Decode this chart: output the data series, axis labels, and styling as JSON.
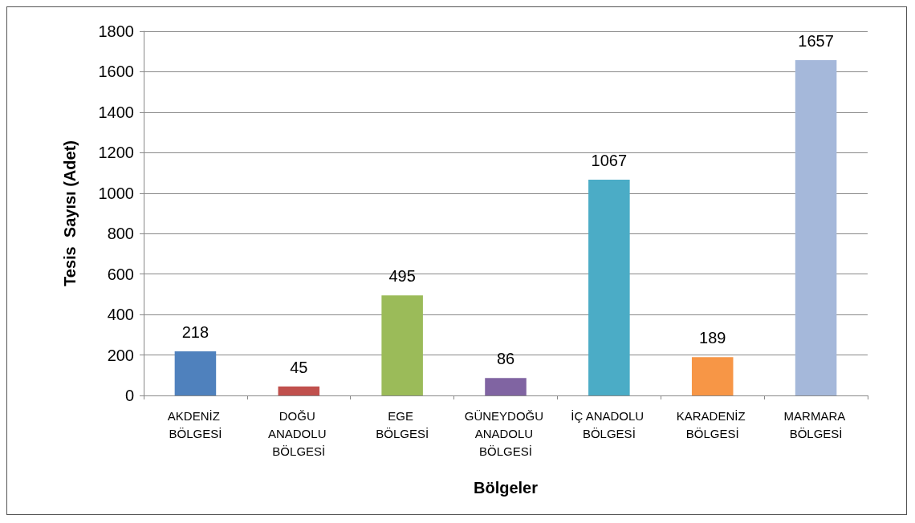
{
  "chart_data": {
    "type": "bar",
    "xlabel": "Bölgeler",
    "ylabel": "Tesis  Sayısı (Adet)",
    "categories": [
      "AKDENİZ BÖLGESİ",
      "DOĞU ANADOLU BÖLGESİ",
      "EGE BÖLGESİ",
      "GÜNEYDOĞU ANADOLU BÖLGESİ",
      "İÇ ANADOLU BÖLGESİ",
      "KARADENİZ BÖLGESİ",
      "MARMARA BÖLGESİ"
    ],
    "values": [
      218,
      45,
      495,
      86,
      1067,
      189,
      1657
    ],
    "colors": [
      "#4f81bd",
      "#c0504d",
      "#9bbb59",
      "#8064a2",
      "#4bacc6",
      "#f79646",
      "#a5b8da"
    ],
    "ylim": [
      0,
      1800
    ],
    "yticks": [
      0,
      200,
      400,
      600,
      800,
      1000,
      1200,
      1400,
      1600,
      1800
    ],
    "grid": "y",
    "data_labels": true
  }
}
